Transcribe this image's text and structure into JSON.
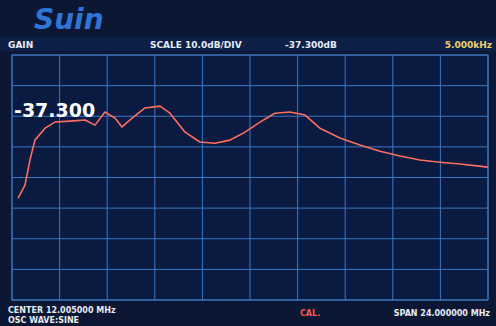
{
  "chart_data": {
    "type": "line",
    "title": "GAIN",
    "annotations": [
      "Suin",
      "SCALE 10.0dB/DIV",
      "-37.300dB",
      "5.000kHz",
      "-37.300",
      "CENTER 12.005000 MHz",
      "OSC WAVE:SINE",
      "CAL.",
      "SPAN 24.000000 MHz"
    ],
    "x": [
      0.31,
      0.66,
      0.91,
      1.16,
      1.67,
      2.17,
      2.93,
      3.69,
      4.19,
      4.69,
      5.2,
      5.55,
      6.06,
      6.71,
      7.47,
      7.97,
      8.73,
      9.48,
      10.24,
      10.99,
      11.75,
      12.51,
      13.26,
      14.02,
      14.78,
      15.53,
      16.54,
      17.55,
      18.56,
      19.57,
      20.57,
      21.58,
      22.59,
      24.0
    ],
    "values": [
      -66.7,
      -62.5,
      -54.3,
      -47.8,
      -43.9,
      -41.9,
      -41.6,
      -41.2,
      -42.9,
      -38.6,
      -40.6,
      -43.5,
      -40.6,
      -37.3,
      -36.7,
      -39.0,
      -45.2,
      -48.4,
      -48.8,
      -47.8,
      -45.2,
      -41.9,
      -39.0,
      -38.6,
      -39.6,
      -43.9,
      -47.1,
      -49.4,
      -51.4,
      -53.0,
      -54.3,
      -55.0,
      -55.6,
      -56.6
    ],
    "color": "#ff6f5e",
    "xlim": [
      0.005,
      24.005
    ],
    "xticks": [
      0.005,
      2.405,
      4.805,
      7.205,
      9.605,
      12.005,
      14.405,
      16.805,
      19.205,
      21.605,
      24.005
    ],
    "ylim": [
      -100,
      -20
    ],
    "yticks": [
      -100,
      -90,
      -80,
      -70,
      -60,
      -50,
      -40,
      -30,
      -20
    ],
    "grid": true,
    "tick_labels": false
  }
}
